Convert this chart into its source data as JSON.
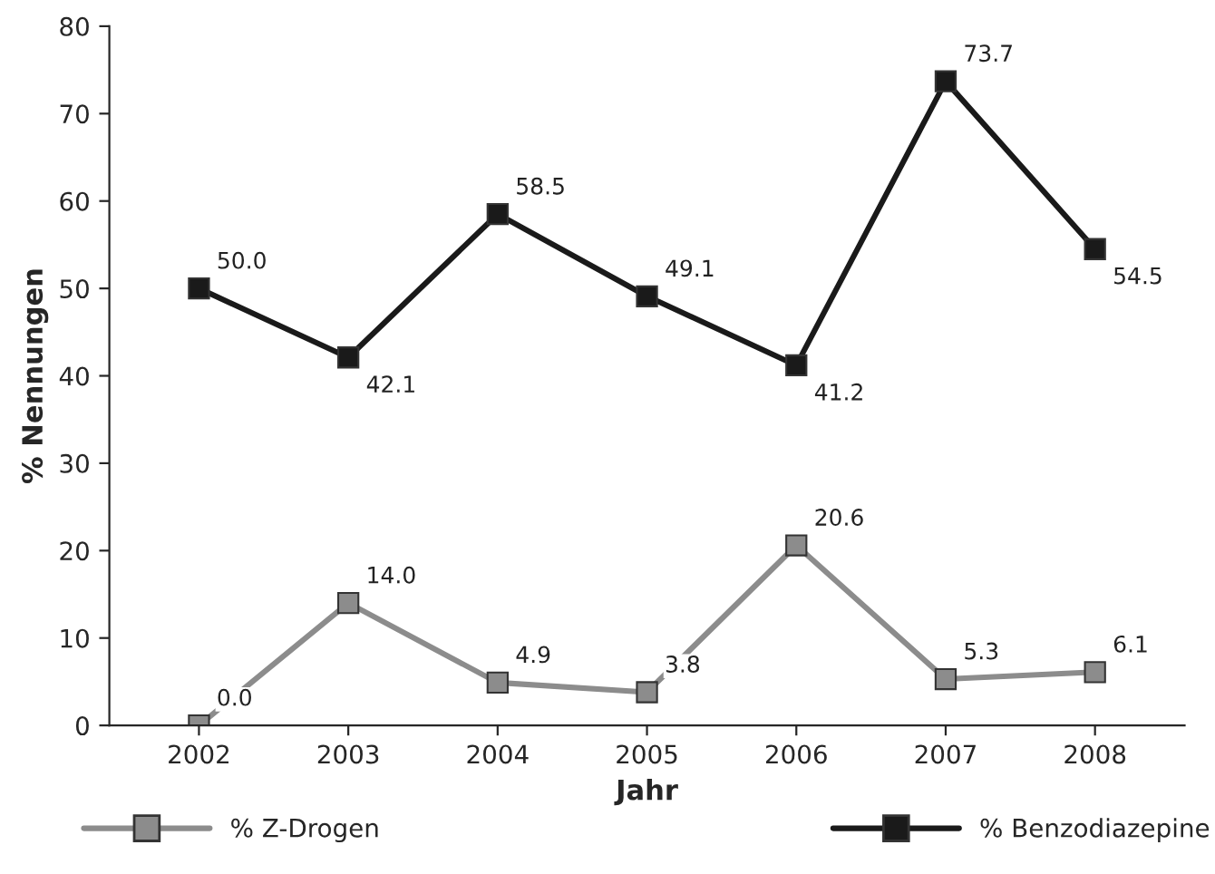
{
  "chart_data": {
    "type": "line",
    "xlabel": "Jahr",
    "ylabel": "% Nennungen",
    "categories": [
      "2002",
      "2003",
      "2004",
      "2005",
      "2006",
      "2007",
      "2008"
    ],
    "series": [
      {
        "name": "% Z-Drogen",
        "color": "#8c8c8c",
        "values": [
          0.0,
          14.0,
          4.9,
          3.8,
          20.6,
          5.3,
          6.1
        ],
        "value_labels": [
          "0.0",
          "14.0",
          "4.9",
          "3.8",
          "20.6",
          "5.3",
          "6.1"
        ]
      },
      {
        "name": "% Benzodiazepine",
        "color": "#1a1a1a",
        "values": [
          50.0,
          42.1,
          58.5,
          49.1,
          41.2,
          73.7,
          54.5
        ],
        "value_labels": [
          "50.0",
          "42.1",
          "58.5",
          "49.1",
          "41.2",
          "73.7",
          "54.5"
        ]
      }
    ],
    "ylim": [
      0,
      80
    ],
    "yticks": [
      0,
      10,
      20,
      30,
      40,
      50,
      60,
      70,
      80
    ],
    "marker": "square",
    "line_style": "solid",
    "legend": "bottom",
    "grid": false
  }
}
